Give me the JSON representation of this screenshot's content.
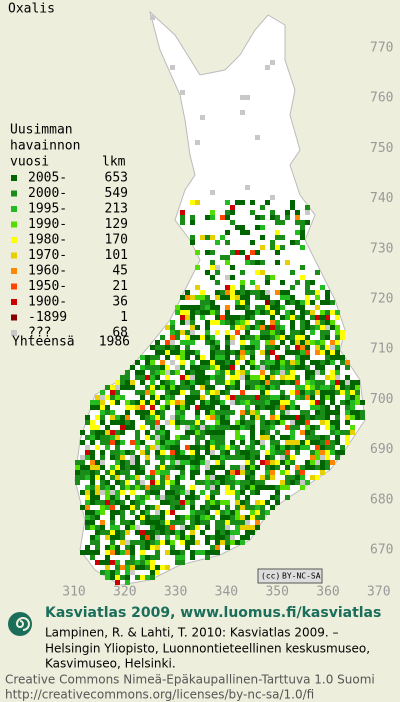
{
  "title": "Oxalis",
  "legend": {
    "heading": [
      "Uusimman",
      "havainnon",
      "vuosi"
    ],
    "count_heading": "lkm",
    "entries": [
      {
        "period": "2005-",
        "count": 653,
        "color": "#006400"
      },
      {
        "period": "2000-",
        "count": 549,
        "color": "#1a8c1a"
      },
      {
        "period": "1995-",
        "count": 213,
        "color": "#22bb22"
      },
      {
        "period": "1990-",
        "count": 129,
        "color": "#55dd00"
      },
      {
        "period": "1980-",
        "count": 170,
        "color": "#ffff00"
      },
      {
        "period": "1970-",
        "count": 101,
        "color": "#e8d000"
      },
      {
        "period": "1960-",
        "count": 45,
        "color": "#ff8800"
      },
      {
        "period": "1950-",
        "count": 21,
        "color": "#ff4400"
      },
      {
        "period": "1900-",
        "count": 36,
        "color": "#cc0000"
      },
      {
        "period": "-1899",
        "count": 1,
        "color": "#880000"
      },
      {
        "period": "???",
        "count": 68,
        "color": "#c8c8c8"
      }
    ],
    "total_label": "Yhteensä",
    "total": 1986
  },
  "grid": {
    "northing_labels": [
      "770",
      "760",
      "750",
      "740",
      "730",
      "720",
      "710",
      "700",
      "690",
      "680",
      "670"
    ],
    "easting_labels": [
      "310",
      "320",
      "330",
      "340",
      "350",
      "360",
      "370"
    ]
  },
  "badge": {
    "icon": "(cc)",
    "text": "BY-NC-SA"
  },
  "footer": {
    "heading": "Kasviatlas 2009, www.luomus.fi/kasviatlas",
    "citation": [
      "Lampinen, R. & Lahti, T. 2010: Kasviatlas 2009. –",
      "Helsingin Yliopisto, Luonnontieteellinen keskusmuseo,",
      "Kasvimuseo, Helsinki."
    ],
    "license": [
      "Creative Commons Nimeä-Epäkaupallinen-Tarttuva 1.0 Suomi",
      "http://creativecommons.org/licenses/by-nc-sa/1.0/fi"
    ]
  }
}
